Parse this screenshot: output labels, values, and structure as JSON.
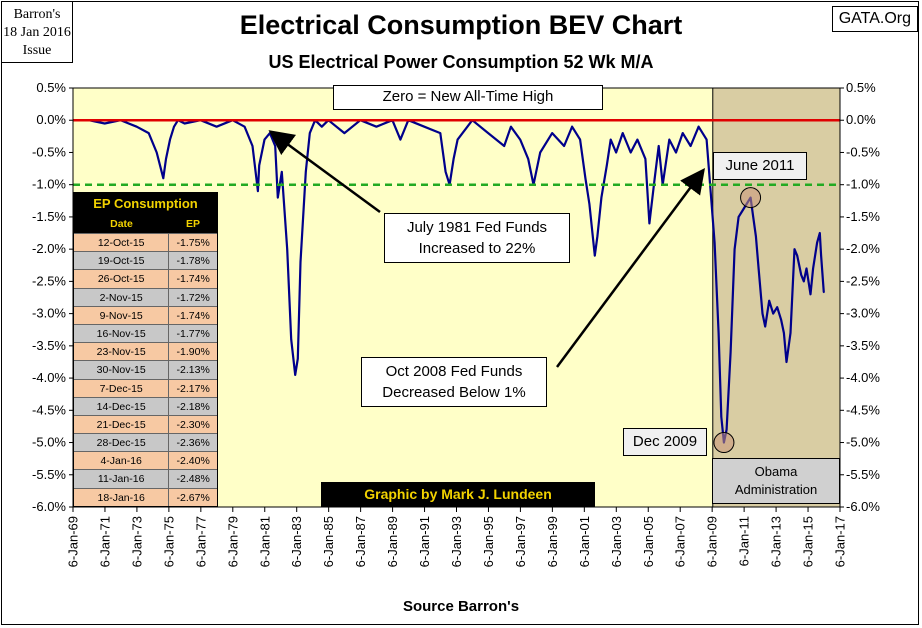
{
  "issue_stamp": {
    "line1": "Barron's",
    "line2": "18 Jan 2016",
    "line3": "Issue"
  },
  "gata_label": "GATA.Org",
  "chart_data": {
    "type": "line",
    "title": "Electrical Consumption BEV Chart",
    "subtitle": "US Electrical Power Consumption 52 Wk M/A",
    "xlabel": "Source Barron's",
    "ylabel": "",
    "ylim": [
      -6.0,
      0.5
    ],
    "xlim": [
      "1969-01-06",
      "2017-01-06"
    ],
    "x_tick_labels": [
      "6-Jan-69",
      "6-Jan-71",
      "6-Jan-73",
      "6-Jan-75",
      "6-Jan-77",
      "6-Jan-79",
      "6-Jan-81",
      "6-Jan-83",
      "6-Jan-85",
      "6-Jan-87",
      "6-Jan-89",
      "6-Jan-91",
      "6-Jan-93",
      "6-Jan-95",
      "6-Jan-97",
      "6-Jan-99",
      "6-Jan-01",
      "6-Jan-03",
      "6-Jan-05",
      "6-Jan-07",
      "6-Jan-09",
      "6-Jan-11",
      "6-Jan-13",
      "6-Jan-15",
      "6-Jan-17"
    ],
    "y_tick_labels": [
      "0.5%",
      "0.0%",
      "-0.5%",
      "-1.0%",
      "-1.5%",
      "-2.0%",
      "-2.5%",
      "-3.0%",
      "-3.5%",
      "-4.0%",
      "-4.5%",
      "-5.0%",
      "-5.5%",
      "-6.0%"
    ],
    "grid": false,
    "colors": {
      "background": "#ffffc8",
      "shade": "#d9cda3",
      "line": "#00008b",
      "zero_line": "#e00000",
      "dash_line": "#22aa22",
      "circle": "#c8967a"
    },
    "reference_lines": [
      {
        "y": 0.0,
        "style": "solid",
        "color": "#e00000"
      },
      {
        "y": -1.0,
        "style": "dashed",
        "color": "#22aa22"
      }
    ],
    "shaded_region": {
      "x": [
        "2009-01-20",
        "2017-01-06"
      ]
    },
    "series": [
      {
        "x": [
          "1969-06",
          "1970-01",
          "1971-01",
          "1972-01",
          "1973-01",
          "1973-10",
          "1974-04",
          "1974-09",
          "1974-11",
          "1975-02",
          "1975-05",
          "1975-08",
          "1976-01",
          "1977-01",
          "1978-01",
          "1979-01",
          "1979-10",
          "1980-04",
          "1980-08",
          "1980-09",
          "1981-01",
          "1981-05",
          "1981-09",
          "1981-11",
          "1982-02",
          "1982-06",
          "1982-09",
          "1982-12",
          "1983-02",
          "1983-04",
          "1983-08",
          "1983-11",
          "1984-03",
          "1984-08",
          "1985-01",
          "1986-01",
          "1987-01",
          "1988-01",
          "1989-01",
          "1989-07",
          "1990-01",
          "1991-01",
          "1992-01",
          "1992-05",
          "1992-08",
          "1992-11",
          "1993-02",
          "1994-01",
          "1995-01",
          "1996-01",
          "1996-06",
          "1997-01",
          "1997-07",
          "1997-11",
          "1998-04",
          "1999-01",
          "1999-10",
          "2000-04",
          "2000-10",
          "2001-02",
          "2001-05",
          "2001-09",
          "2001-11",
          "2002-02",
          "2002-06",
          "2002-09",
          "2003-01",
          "2003-06",
          "2003-12",
          "2004-05",
          "2004-11",
          "2005-02",
          "2005-06",
          "2005-09",
          "2005-12",
          "2006-05",
          "2006-10",
          "2007-03",
          "2007-09",
          "2008-03",
          "2008-09",
          "2008-12",
          "2009-03",
          "2009-06",
          "2009-08",
          "2009-10",
          "2009-12",
          "2010-03",
          "2010-06",
          "2010-09",
          "2010-12",
          "2011-03",
          "2011-06",
          "2011-08",
          "2011-10",
          "2011-12",
          "2012-03",
          "2012-05",
          "2012-08",
          "2012-11",
          "2013-02",
          "2013-05",
          "2013-07",
          "2013-09",
          "2013-12",
          "2014-03",
          "2014-05",
          "2014-08",
          "2014-10",
          "2014-12",
          "2015-03",
          "2015-05",
          "2015-08",
          "2015-10",
          "2015-11",
          "2016-01"
        ],
        "values": [
          0.0,
          0.0,
          -0.05,
          0.0,
          -0.1,
          -0.2,
          -0.5,
          -0.9,
          -0.6,
          -0.3,
          -0.1,
          0.0,
          -0.05,
          0.0,
          -0.1,
          0.0,
          -0.1,
          -0.4,
          -1.1,
          -0.7,
          -0.3,
          -0.2,
          -0.4,
          -1.2,
          -0.8,
          -2.0,
          -3.4,
          -3.95,
          -3.7,
          -2.2,
          -0.8,
          -0.2,
          0.0,
          -0.1,
          0.0,
          -0.2,
          0.0,
          -0.1,
          0.0,
          -0.3,
          0.0,
          -0.1,
          -0.2,
          -0.8,
          -1.0,
          -0.6,
          -0.3,
          0.0,
          -0.2,
          -0.4,
          -0.1,
          -0.3,
          -0.6,
          -1.0,
          -0.5,
          -0.2,
          -0.4,
          -0.1,
          -0.3,
          -0.9,
          -1.3,
          -2.1,
          -1.8,
          -1.2,
          -0.7,
          -0.3,
          -0.5,
          -0.2,
          -0.5,
          -0.3,
          -0.6,
          -1.6,
          -0.9,
          -0.4,
          -1.0,
          -0.3,
          -0.5,
          -0.2,
          -0.4,
          -0.1,
          -0.3,
          -1.1,
          -1.9,
          -3.3,
          -4.6,
          -5.0,
          -4.8,
          -3.6,
          -2.0,
          -1.5,
          -1.4,
          -1.3,
          -1.2,
          -1.5,
          -1.8,
          -2.3,
          -3.0,
          -3.2,
          -2.8,
          -3.0,
          -2.9,
          -3.1,
          -3.3,
          -3.75,
          -3.3,
          -2.0,
          -2.1,
          -2.4,
          -2.5,
          -2.3,
          -2.7,
          -2.3,
          -1.9,
          -1.75,
          -2.1,
          -2.67
        ]
      }
    ]
  },
  "annotations": {
    "zero_box": "Zero = New All-Time High",
    "july1981_line1": "July 1981 Fed Funds",
    "july1981_line2": "Increased to 22%",
    "oct2008_line1": "Oct 2008 Fed Funds",
    "oct2008_line2": "Decreased Below 1%",
    "june2011": "June 2011",
    "dec2009": "Dec 2009",
    "obama_line1": "Obama",
    "obama_line2": "Administration",
    "credit": "Graphic by Mark J. Lundeen"
  },
  "table": {
    "title": "EP Consumption",
    "headers": [
      "Date",
      "EP"
    ],
    "rows": [
      {
        "date": "12-Oct-15",
        "ep": "-1.75%"
      },
      {
        "date": "19-Oct-15",
        "ep": "-1.78%"
      },
      {
        "date": "26-Oct-15",
        "ep": "-1.74%"
      },
      {
        "date": "2-Nov-15",
        "ep": "-1.72%"
      },
      {
        "date": "9-Nov-15",
        "ep": "-1.74%"
      },
      {
        "date": "16-Nov-15",
        "ep": "-1.77%"
      },
      {
        "date": "23-Nov-15",
        "ep": "-1.90%"
      },
      {
        "date": "30-Nov-15",
        "ep": "-2.13%"
      },
      {
        "date": "7-Dec-15",
        "ep": "-2.17%"
      },
      {
        "date": "14-Dec-15",
        "ep": "-2.18%"
      },
      {
        "date": "21-Dec-15",
        "ep": "-2.30%"
      },
      {
        "date": "28-Dec-15",
        "ep": "-2.36%"
      },
      {
        "date": "4-Jan-16",
        "ep": "-2.40%"
      },
      {
        "date": "11-Jan-16",
        "ep": "-2.48%"
      },
      {
        "date": "18-Jan-16",
        "ep": "-2.67%"
      }
    ],
    "row_colors": [
      "#f7c9a3",
      "#c8c8c8"
    ]
  }
}
